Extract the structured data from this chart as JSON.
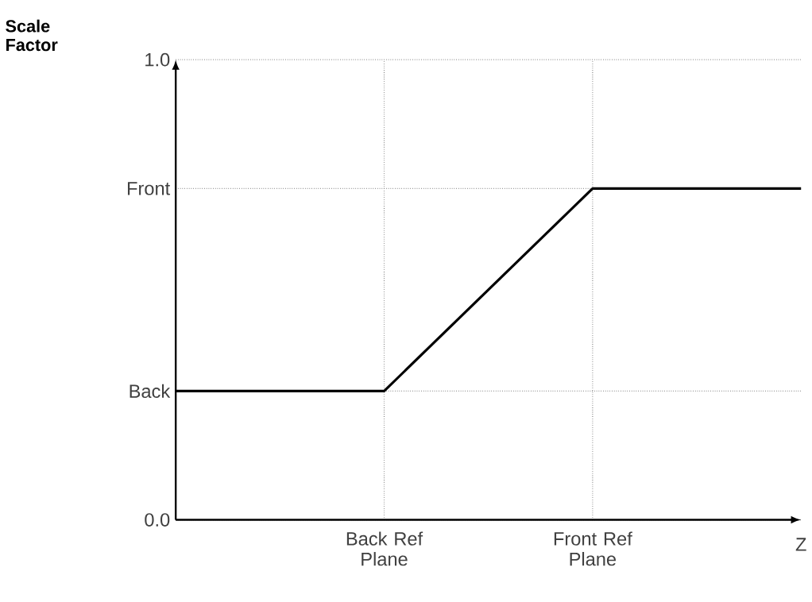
{
  "chart_data": {
    "type": "line",
    "ylabel": "Scale Factor",
    "xlabel": "Z",
    "categories": [
      null,
      "Back Ref Plane",
      "Front Ref Plane",
      null
    ],
    "series": [
      {
        "color": "#000000",
        "values": [
          0.28,
          0.28,
          0.72,
          0.72
        ]
      }
    ],
    "ylim": [
      0,
      1.0
    ],
    "yticks": [
      {
        "value": 0,
        "label": "0.0"
      },
      {
        "value": 0.28,
        "label": "Back"
      },
      {
        "value": 0.72,
        "label": "Front"
      },
      {
        "value": 1.0,
        "label": "1.0"
      }
    ],
    "grid": true
  }
}
